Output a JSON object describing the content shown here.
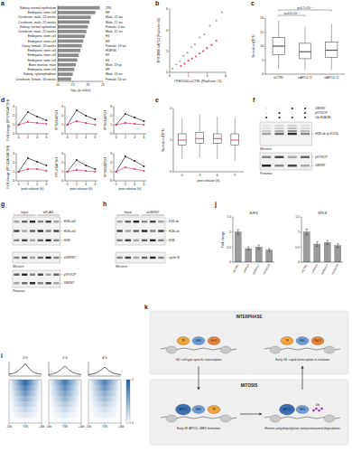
{
  "panel_labels": [
    "a",
    "b",
    "c",
    "d",
    "e",
    "f",
    "g",
    "h",
    "i",
    "j",
    "k"
  ],
  "chart_data": [
    {
      "type": "bar",
      "orientation": "horizontal",
      "categories": [
        "Kidney, normal epithelium",
        "Embryonic stem cell",
        "Cerebrum, male, 22 weeks",
        "Cerebrum, male, 21 weeks",
        "Kidney, normal epithelium",
        "Cerebrum, male, 22 weeks",
        "Embryonic stem cell",
        "Embryonic stem cell",
        "Ovary, female, 19 weeks",
        "Embryonic stem cell",
        "Embryonic stem cell",
        "Embryonic stem cell",
        "Bone marrow, male",
        "Embryonic stem cell",
        "Kidney, cytotrophoblast",
        "Cerebrum, female, 16 weeks"
      ],
      "values": [
        24,
        22.5,
        21,
        20.5,
        20,
        19.5,
        19,
        18.5,
        18,
        17.5,
        17,
        16.5,
        16,
        15.5,
        15,
        14.5
      ],
      "annotations": [
        "293",
        "H9",
        "Male, 22 ws",
        "Male, 21 ws",
        "Female, 0 ms",
        "Male, 22 ws",
        "H1",
        "H9",
        "Female, 19 ws",
        "HUES6",
        "H7",
        "H1",
        "Male, 19 ys",
        "H9",
        "Male, 16 ws",
        "Female, 16 ws"
      ],
      "color": "#8c8c8c",
      "xlabel": "-log₁₀(p-value)",
      "xlim": [
        10,
        25
      ],
      "xticks": [
        10,
        15,
        20,
        25
      ]
    },
    {
      "type": "scatter",
      "xlabel": "TPM/1000 siCTRL [Replicate #1]",
      "ylabel": "TPM/1000 siAPC4 [Replicate #1]",
      "xlim": [
        0,
        6
      ],
      "ylim": [
        0,
        6
      ],
      "xticks": [
        0,
        2,
        4,
        6
      ],
      "yticks": [
        0,
        2,
        4,
        6
      ],
      "series": [
        {
          "color": "#9a9a9a",
          "x": [
            0.3,
            0.7,
            1.1,
            1.5,
            1.9,
            2.3,
            2.7,
            3.2,
            3.7,
            4.3,
            5.0,
            5.6
          ],
          "values": [
            0.35,
            0.75,
            1.05,
            1.55,
            1.85,
            2.4,
            2.65,
            3.3,
            3.6,
            4.4,
            4.9,
            5.7
          ]
        },
        {
          "color": "#e0306a",
          "x": [
            1.2,
            1.6,
            2.0,
            2.4,
            2.8,
            3.2,
            3.6,
            4.0,
            4.5,
            5.0
          ],
          "values": [
            0.6,
            0.8,
            1.1,
            1.3,
            1.5,
            1.8,
            2.0,
            2.3,
            2.6,
            3.0
          ]
        }
      ]
    },
    {
      "type": "box",
      "categories": [
        "siCTRL",
        "siAPC4 #1",
        "siAPC4 #2"
      ],
      "min": [
        2,
        1.5,
        1.5
      ],
      "q1": [
        7,
        5.5,
        6
      ],
      "median": [
        10,
        8,
        8.5
      ],
      "q3": [
        13,
        11,
        11.5
      ],
      "max": [
        19,
        17,
        18
      ],
      "color": "#222222",
      "ylabel": "Normalized TPM",
      "ylim": [
        0,
        20
      ],
      "yticks": [
        0,
        5,
        10,
        15,
        20
      ],
      "annotations": [
        "p=4.1×10⁻⁴",
        "p=3.0×10⁻⁴"
      ]
    },
    {
      "type": "line",
      "ylabel": "Fold change (RPLP0/GAPDH)",
      "x": [
        0,
        2,
        4,
        6
      ],
      "xlim": [
        -0.5,
        6.5
      ],
      "xticks": [
        0,
        2,
        4,
        6
      ],
      "ylim": [
        0,
        3
      ],
      "yticks": [
        0,
        1,
        2,
        3
      ],
      "marker": "circle",
      "series": [
        {
          "color": "#222222",
          "values": [
            1,
            2.4,
            1.9,
            1.5
          ]
        },
        {
          "color": "#e0306a",
          "values": [
            1,
            1.3,
            1.2,
            1.1
          ]
        }
      ]
    },
    {
      "type": "line",
      "ylabel": "RPS3/GAPDH",
      "x": [
        0,
        2,
        4,
        6
      ],
      "xlim": [
        -0.5,
        6.5
      ],
      "xticks": [
        0,
        2,
        4,
        6
      ],
      "ylim": [
        0,
        3
      ],
      "yticks": [
        0,
        1,
        2,
        3
      ],
      "marker": "circle",
      "series": [
        {
          "color": "#222222",
          "values": [
            1,
            2.6,
            2.0,
            1.6
          ]
        },
        {
          "color": "#e0306a",
          "values": [
            1,
            1.4,
            1.2,
            1.0
          ]
        }
      ]
    },
    {
      "type": "line",
      "ylabel": "RPS6/GAPDH",
      "x": [
        0,
        2,
        4,
        6
      ],
      "xlim": [
        -0.5,
        6.5
      ],
      "xticks": [
        0,
        2,
        4,
        6
      ],
      "ylim": [
        0,
        3
      ],
      "yticks": [
        0,
        1,
        2,
        3
      ],
      "marker": "circle",
      "series": [
        {
          "color": "#222222",
          "values": [
            1,
            2.2,
            1.8,
            1.4
          ]
        },
        {
          "color": "#e0306a",
          "values": [
            1,
            1.2,
            1.1,
            1.0
          ]
        }
      ]
    },
    {
      "type": "line",
      "ylabel": "Fold change (RPL13A/GAPDH)",
      "xlabel": "post release (h)",
      "x": [
        0,
        2,
        4,
        6
      ],
      "xlim": [
        -0.5,
        6.5
      ],
      "xticks": [
        0,
        2,
        4,
        6
      ],
      "ylim": [
        0,
        3
      ],
      "yticks": [
        0,
        1,
        2,
        3
      ],
      "marker": "circle",
      "series": [
        {
          "color": "#222222",
          "values": [
            1,
            2.5,
            2.1,
            1.7
          ]
        },
        {
          "color": "#e0306a",
          "values": [
            1,
            1.3,
            1.3,
            1.1
          ]
        }
      ]
    },
    {
      "type": "line",
      "ylabel": "RPL4/GAPDH",
      "xlabel": "post release (h)",
      "x": [
        0,
        2,
        4,
        6
      ],
      "xlim": [
        -0.5,
        6.5
      ],
      "xticks": [
        0,
        2,
        4,
        6
      ],
      "ylim": [
        0,
        3
      ],
      "yticks": [
        0,
        1,
        2,
        3
      ],
      "marker": "circle",
      "series": [
        {
          "color": "#222222",
          "values": [
            1,
            2.3,
            1.7,
            1.3
          ]
        },
        {
          "color": "#e0306a",
          "values": [
            1,
            1.2,
            1.1,
            1.0
          ]
        }
      ]
    },
    {
      "type": "line",
      "ylabel": "RPS8/GAPDH",
      "xlabel": "post release (h)",
      "x": [
        0,
        2,
        4,
        6
      ],
      "xlim": [
        -0.5,
        6.5
      ],
      "xticks": [
        0,
        2,
        4,
        6
      ],
      "ylim": [
        0,
        3
      ],
      "yticks": [
        0,
        1,
        2,
        3
      ],
      "marker": "circle",
      "series": [
        {
          "color": "#222222",
          "values": [
            1,
            2.7,
            2.2,
            1.6
          ]
        },
        {
          "color": "#e0306a",
          "values": [
            1,
            1.5,
            1.3,
            1.1
          ]
        }
      ]
    },
    {
      "type": "box",
      "categories": [
        "0",
        "3",
        "6",
        "9"
      ],
      "min": [
        0.4,
        0.45,
        0.4,
        0.35
      ],
      "q1": [
        0.85,
        0.9,
        0.9,
        0.85
      ],
      "median": [
        1.0,
        1.05,
        1.05,
        1.0
      ],
      "q3": [
        1.2,
        1.25,
        1.2,
        1.2
      ],
      "max": [
        1.7,
        1.8,
        1.75,
        1.7
      ],
      "color": "#e0306a",
      "xlabel": "post release (h)",
      "ylabel": "Normalized TPM",
      "ylim": [
        0,
        2
      ],
      "yticks": [
        0,
        1,
        2
      ]
    },
    {
      "type": "bar",
      "title": "E2F3",
      "categories": [
        "siCTRL",
        "siAPC4",
        "siUBXN7",
        "siCDC20"
      ],
      "values": [
        1,
        0.45,
        0.5,
        0.4
      ],
      "errors": [
        0.08,
        0.06,
        0.07,
        0.05
      ],
      "color": "#9a9a9a",
      "ylabel": "Fold change",
      "ylim": [
        0,
        1.5
      ],
      "yticks": [
        0,
        0.5,
        1,
        1.5
      ]
    },
    {
      "type": "bar",
      "title": "RPL4",
      "categories": [
        "siCTRL",
        "siAPC4",
        "siUBXN7",
        "siCDC20"
      ],
      "values": [
        1,
        0.6,
        0.65,
        0.55
      ],
      "errors": [
        0.1,
        0.08,
        0.07,
        0.06
      ],
      "color": "#9a9a9a",
      "ylim": [
        0,
        1.5
      ],
      "yticks": [
        0,
        0.5,
        1,
        1.5
      ]
    },
    {
      "type": "line",
      "title": "0 h",
      "tick_labels": "x",
      "x": [
        -1,
        -0.75,
        -0.5,
        -0.25,
        0,
        0.25,
        0.5,
        0.75,
        1
      ],
      "xlim": [
        -1,
        1
      ],
      "xticks": [
        {
          "value": -1,
          "label": "-1kb"
        },
        {
          "value": 0,
          "label": "TSS"
        },
        {
          "value": 1,
          "label": "+1kb"
        }
      ],
      "ylim": [
        0,
        1
      ],
      "series": [
        {
          "color": "#222222",
          "values": [
            0.12,
            0.18,
            0.3,
            0.55,
            0.85,
            0.5,
            0.28,
            0.17,
            0.12
          ]
        }
      ],
      "heatmap": [
        0.95,
        0.8,
        0.65,
        0.5,
        0.38,
        0.26,
        0.15,
        0.06
      ]
    },
    {
      "type": "line",
      "title": "2 h",
      "tick_labels": "x",
      "x": [
        -1,
        -0.75,
        -0.5,
        -0.25,
        0,
        0.25,
        0.5,
        0.75,
        1
      ],
      "xlim": [
        -1,
        1
      ],
      "xticks": [
        {
          "value": -1,
          "label": "-1kb"
        },
        {
          "value": 0,
          "label": "TSS"
        },
        {
          "value": 1,
          "label": "+1kb"
        }
      ],
      "ylim": [
        0,
        1
      ],
      "series": [
        {
          "color": "#222222",
          "values": [
            0.1,
            0.15,
            0.25,
            0.45,
            0.7,
            0.42,
            0.24,
            0.15,
            0.1
          ]
        }
      ],
      "heatmap": [
        0.85,
        0.72,
        0.58,
        0.45,
        0.33,
        0.22,
        0.13,
        0.05
      ]
    },
    {
      "type": "line",
      "title": "4 h",
      "tick_labels": "x",
      "x": [
        -1,
        -0.75,
        -0.5,
        -0.25,
        0,
        0.25,
        0.5,
        0.75,
        1
      ],
      "xlim": [
        -1,
        1
      ],
      "xticks": [
        {
          "value": -1,
          "label": "-1kb"
        },
        {
          "value": 0,
          "label": "TSS"
        },
        {
          "value": 1,
          "label": "+1kb"
        }
      ],
      "ylim": [
        0,
        1
      ],
      "series": [
        {
          "color": "#222222",
          "values": [
            0.1,
            0.14,
            0.22,
            0.4,
            0.62,
            0.38,
            0.21,
            0.14,
            0.1
          ]
        }
      ],
      "heatmap": [
        0.78,
        0.66,
        0.53,
        0.41,
        0.3,
        0.2,
        0.12,
        0.05
      ],
      "colorbar": {
        "lim": [
          0,
          1
        ],
        "ticks": [
          0,
          1
        ]
      }
    }
  ],
  "blots": [
    {
      "conditions": [
        {
          "label": "UBXN7",
          "lanes": [
            false,
            false,
            true,
            true
          ]
        },
        {
          "label": "p97/VCP",
          "lanes": [
            false,
            true,
            false,
            true
          ]
        },
        {
          "label": "Ub-H2A/2B",
          "lanes": [
            true,
            true,
            true,
            true
          ]
        }
      ],
      "panels": [
        {
          "labels": [
            "H2B-ub (α-K120)"
          ],
          "method": "Western"
        },
        {
          "labels": [
            "p97/VCP",
            "UBXN7"
          ],
          "method": "Ponceau"
        }
      ]
    },
    {
      "columns": [
        "Input",
        "αFLAG"
      ],
      "panels": [
        {
          "labels": [
            "H2B-ub2",
            "H2B-ub1",
            "H2B"
          ]
        },
        {
          "labels": [
            "αUBXN7"
          ],
          "method": "Western"
        },
        {
          "labels": [
            "p97/VCP",
            "UBXN7"
          ],
          "method": "Ponceau"
        }
      ]
    },
    {
      "columns": [
        "Input",
        "αUBXN7"
      ],
      "panels": [
        {
          "labels": [
            "K48-ub",
            "H2B-ub",
            "H2B"
          ]
        },
        {
          "labels": [
            "cyclin B"
          ],
          "method": "Western"
        }
      ]
    }
  ],
  "diagram": {
    "top": "INTERPHASE",
    "bottom": "MITOSIS",
    "scenes": [
      {
        "caption": "G2: cell type-specific transcription",
        "nodes": [
          {
            "label": "TF",
            "color": "#f2a33a",
            "shape": "blob"
          },
          {
            "label": "MED",
            "color": "#6f9fd8",
            "shape": "blob"
          },
          {
            "label": "Pol II",
            "color": "#e8843a",
            "shape": "blob"
          }
        ]
      },
      {
        "caption": "Early G1: rapid transcription re-initiation",
        "nodes": [
          {
            "label": "TF",
            "color": "#f2a33a",
            "shape": "blob"
          },
          {
            "label": "MED",
            "color": "#6f9fd8",
            "shape": "blob"
          },
          {
            "label": "Pol II",
            "color": "#e8843a",
            "shape": "blob"
          }
        ]
      },
      {
        "caption": "Early M: APC/C–MED formation",
        "nodes": [
          {
            "label": "APC/C",
            "color": "#3f6fb3",
            "shape": "large"
          },
          {
            "label": "MED",
            "color": "#6f9fd8",
            "shape": "blob"
          },
          {
            "label": "TF",
            "color": "#f2a33a",
            "shape": "blob"
          }
        ]
      },
      {
        "caption": "Histone polyubiquitylation and proteasomal degradation",
        "nodes": [
          {
            "label": "APC/C",
            "color": "#3f6fb3",
            "shape": "large"
          },
          {
            "label": "MED",
            "color": "#6f9fd8",
            "shape": "blob"
          },
          {
            "label": "Ub",
            "color": "#8e3fa0",
            "shape": "chain"
          }
        ]
      }
    ]
  }
}
